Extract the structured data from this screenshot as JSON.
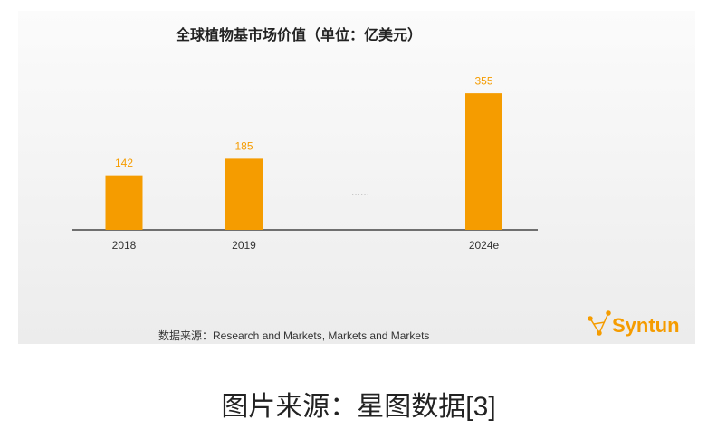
{
  "chart_data": {
    "type": "bar",
    "title": "全球植物基市场价值（单位：亿美元）",
    "categories": [
      "2018",
      "2019",
      null,
      "2024e"
    ],
    "values": [
      142,
      185,
      null,
      355
    ],
    "color": "#f59c00",
    "annotation": "......",
    "source": "数据来源：Research and Markets, Markets and Markets"
  },
  "logo": "Syntun",
  "caption": "图片来源：星图数据[3]"
}
